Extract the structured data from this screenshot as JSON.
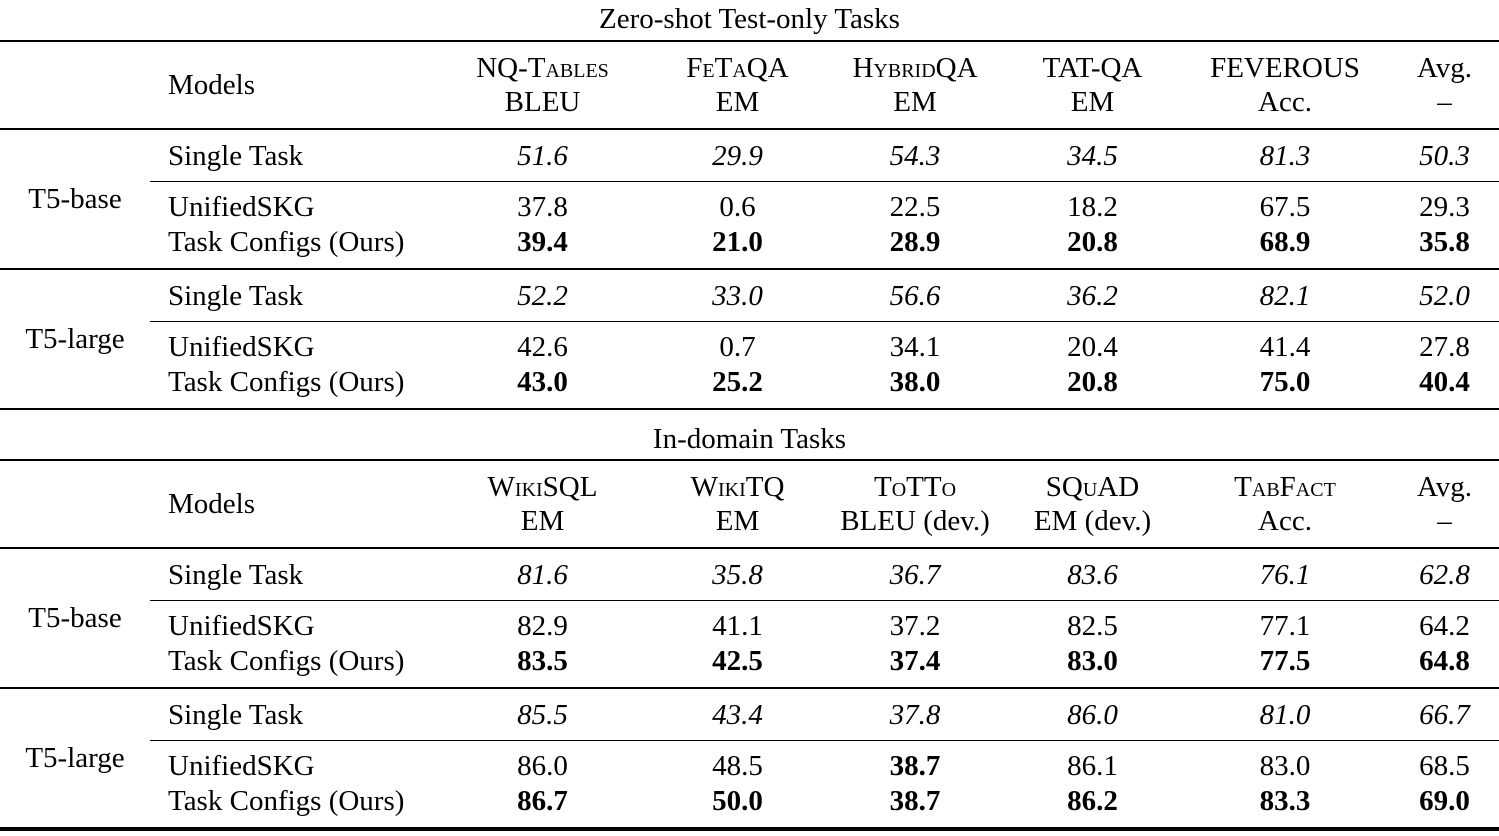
{
  "colors": {
    "text": "#000000",
    "background": "#ffffff",
    "rule": "#000000"
  },
  "tables": [
    {
      "title": "Zero-shot Test-only Tasks",
      "models_header": "Models",
      "columns": [
        {
          "dataset": "NQ-Tables",
          "metric": "BLEU",
          "smallcaps": true
        },
        {
          "dataset": "FeTaQA",
          "metric": "EM",
          "smallcaps": true
        },
        {
          "dataset": "HybridQA",
          "metric": "EM",
          "smallcaps": true
        },
        {
          "dataset": "TAT-QA",
          "metric": "EM",
          "smallcaps": true
        },
        {
          "dataset": "FEVEROUS",
          "metric": "Acc.",
          "smallcaps": true
        },
        {
          "dataset": "Avg.",
          "metric": "–",
          "smallcaps": false
        }
      ],
      "groups": [
        {
          "label": "T5-base",
          "rows": [
            {
              "model": "Single Task",
              "emphasis": "italic",
              "values": [
                "51.6",
                "29.9",
                "54.3",
                "34.5",
                "81.3",
                "50.3"
              ],
              "bold_flags": [
                false,
                false,
                false,
                false,
                false,
                false
              ]
            },
            {
              "model": "UnifiedSKG",
              "emphasis": "none",
              "values": [
                "37.8",
                "0.6",
                "22.5",
                "18.2",
                "67.5",
                "29.3"
              ],
              "bold_flags": [
                false,
                false,
                false,
                false,
                false,
                false
              ]
            },
            {
              "model": "Task Configs (Ours)",
              "emphasis": "none",
              "values": [
                "39.4",
                "21.0",
                "28.9",
                "20.8",
                "68.9",
                "35.8"
              ],
              "bold_flags": [
                true,
                true,
                true,
                true,
                true,
                true
              ]
            }
          ]
        },
        {
          "label": "T5-large",
          "rows": [
            {
              "model": "Single Task",
              "emphasis": "italic",
              "values": [
                "52.2",
                "33.0",
                "56.6",
                "36.2",
                "82.1",
                "52.0"
              ],
              "bold_flags": [
                false,
                false,
                false,
                false,
                false,
                false
              ]
            },
            {
              "model": "UnifiedSKG",
              "emphasis": "none",
              "values": [
                "42.6",
                "0.7",
                "34.1",
                "20.4",
                "41.4",
                "27.8"
              ],
              "bold_flags": [
                false,
                false,
                false,
                false,
                false,
                false
              ]
            },
            {
              "model": "Task Configs (Ours)",
              "emphasis": "none",
              "values": [
                "43.0",
                "25.2",
                "38.0",
                "20.8",
                "75.0",
                "40.4"
              ],
              "bold_flags": [
                true,
                true,
                true,
                true,
                true,
                true
              ]
            }
          ]
        }
      ]
    },
    {
      "title": "In-domain Tasks",
      "models_header": "Models",
      "columns": [
        {
          "dataset": "WikiSQL",
          "metric": "EM",
          "smallcaps": true
        },
        {
          "dataset": "WikiTQ",
          "metric": "EM",
          "smallcaps": true
        },
        {
          "dataset": "ToTTo",
          "metric": "BLEU (dev.)",
          "smallcaps": true
        },
        {
          "dataset": "SQuAD",
          "metric": "EM (dev.)",
          "smallcaps": true
        },
        {
          "dataset": "TabFact",
          "metric": "Acc.",
          "smallcaps": true
        },
        {
          "dataset": "Avg.",
          "metric": "–",
          "smallcaps": false
        }
      ],
      "groups": [
        {
          "label": "T5-base",
          "rows": [
            {
              "model": "Single Task",
              "emphasis": "italic",
              "values": [
                "81.6",
                "35.8",
                "36.7",
                "83.6",
                "76.1",
                "62.8"
              ],
              "bold_flags": [
                false,
                false,
                false,
                false,
                false,
                false
              ]
            },
            {
              "model": "UnifiedSKG",
              "emphasis": "none",
              "values": [
                "82.9",
                "41.1",
                "37.2",
                "82.5",
                "77.1",
                "64.2"
              ],
              "bold_flags": [
                false,
                false,
                false,
                false,
                false,
                false
              ]
            },
            {
              "model": "Task Configs (Ours)",
              "emphasis": "none",
              "values": [
                "83.5",
                "42.5",
                "37.4",
                "83.0",
                "77.5",
                "64.8"
              ],
              "bold_flags": [
                true,
                true,
                true,
                true,
                true,
                true
              ]
            }
          ]
        },
        {
          "label": "T5-large",
          "rows": [
            {
              "model": "Single Task",
              "emphasis": "italic",
              "values": [
                "85.5",
                "43.4",
                "37.8",
                "86.0",
                "81.0",
                "66.7"
              ],
              "bold_flags": [
                false,
                false,
                false,
                false,
                false,
                false
              ]
            },
            {
              "model": "UnifiedSKG",
              "emphasis": "none",
              "values": [
                "86.0",
                "48.5",
                "38.7",
                "86.1",
                "83.0",
                "68.5"
              ],
              "bold_flags": [
                false,
                false,
                true,
                false,
                false,
                false
              ]
            },
            {
              "model": "Task Configs (Ours)",
              "emphasis": "none",
              "values": [
                "86.7",
                "50.0",
                "38.7",
                "86.2",
                "83.3",
                "69.0"
              ],
              "bold_flags": [
                true,
                true,
                true,
                true,
                true,
                true
              ]
            }
          ]
        }
      ]
    }
  ]
}
